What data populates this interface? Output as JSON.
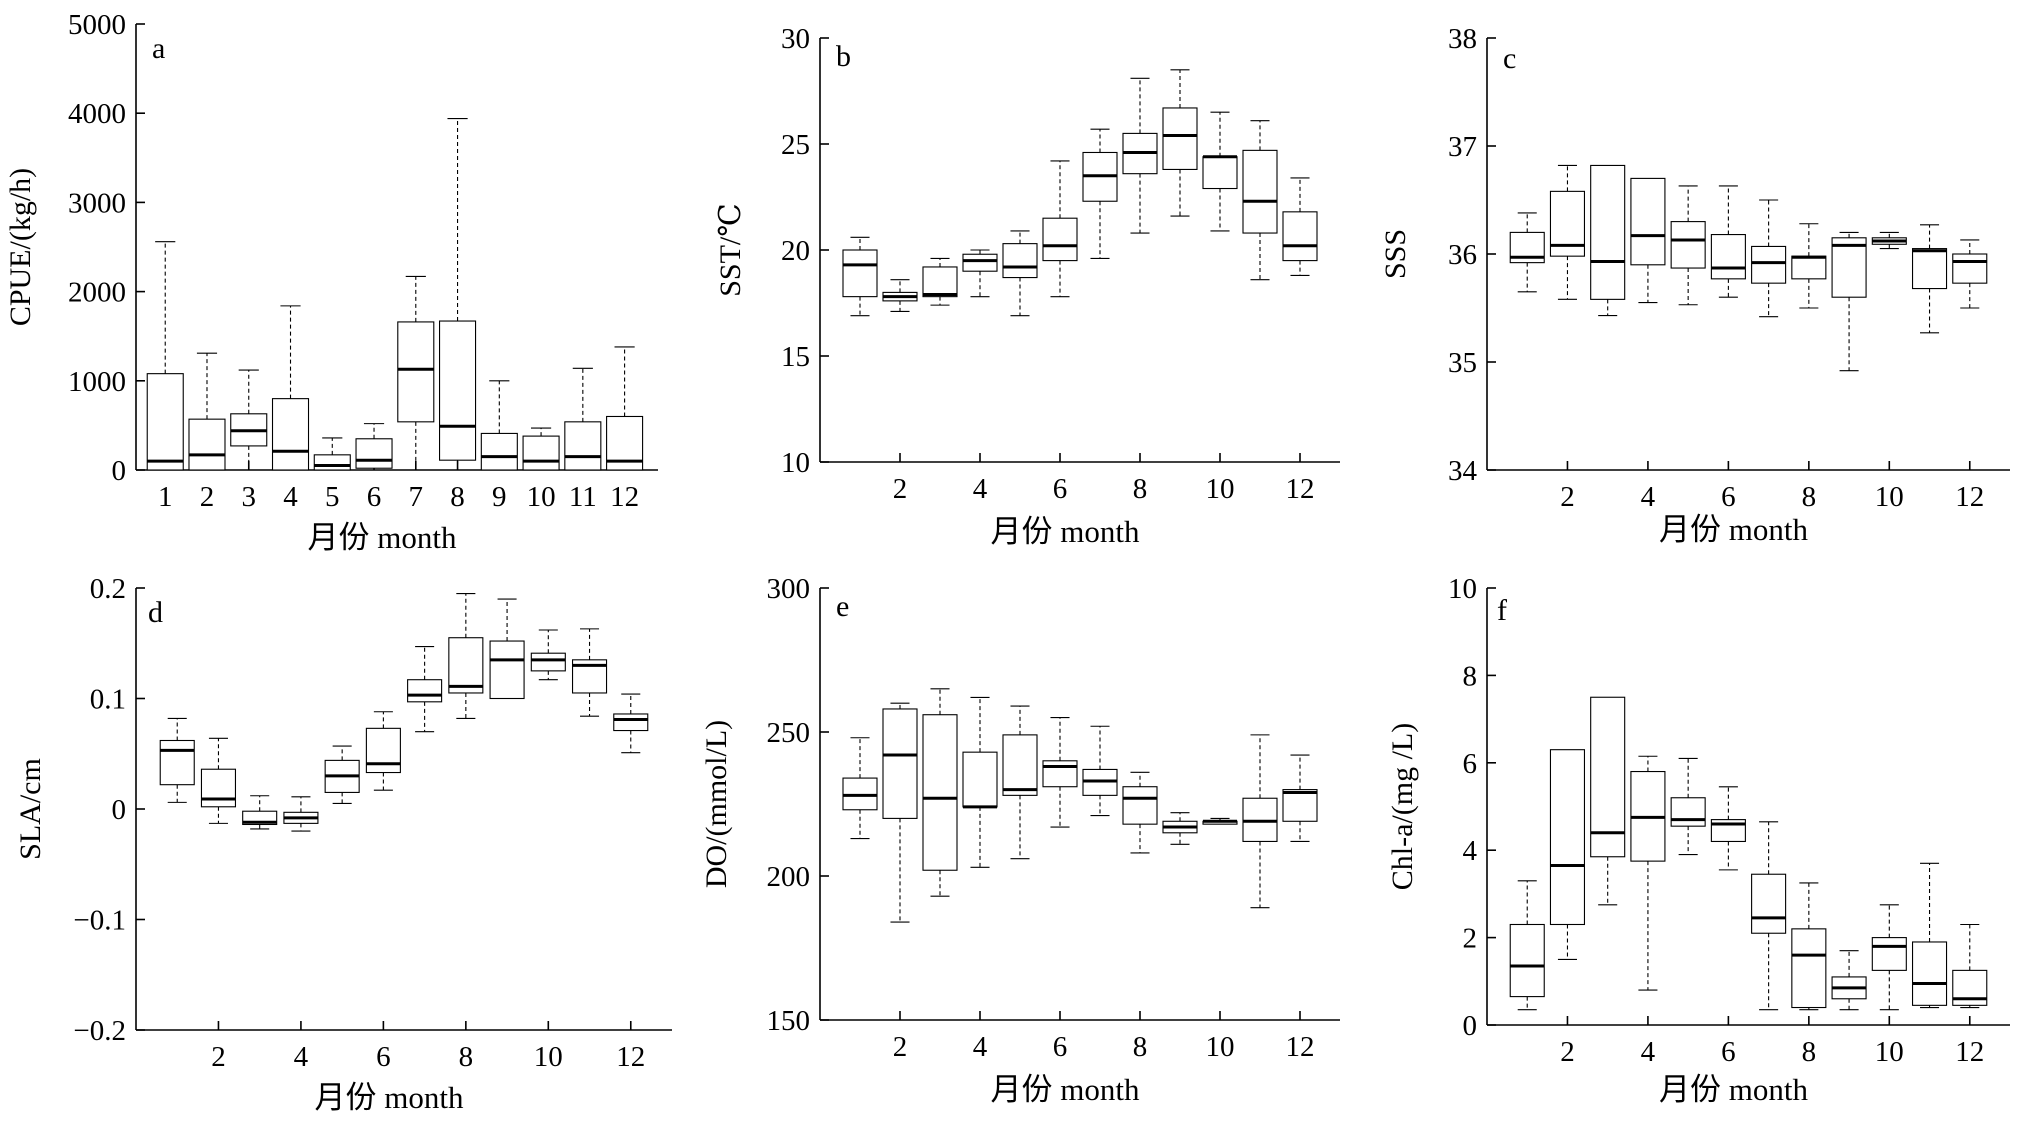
{
  "chart_data": [
    {
      "panel": "a",
      "type": "box",
      "ylabel": "CPUE/(kg/h)",
      "xlabel": "月份 month",
      "ylim": [
        0,
        5000
      ],
      "yticks": [
        0,
        1000,
        2000,
        3000,
        4000,
        5000
      ],
      "xticks": [
        1,
        2,
        3,
        4,
        5,
        6,
        7,
        8,
        9,
        10,
        11,
        12
      ],
      "xlim": [
        0.3,
        12.8
      ],
      "boxes": [
        {
          "x": 1,
          "min": 0,
          "q1": 0,
          "median": 100,
          "q3": 1080,
          "max": 2560
        },
        {
          "x": 2,
          "min": 0,
          "q1": 0,
          "median": 170,
          "q3": 570,
          "max": 1310
        },
        {
          "x": 3,
          "min": 0,
          "q1": 270,
          "median": 440,
          "q3": 630,
          "max": 1120
        },
        {
          "x": 4,
          "min": 0,
          "q1": 0,
          "median": 210,
          "q3": 800,
          "max": 1840
        },
        {
          "x": 5,
          "min": 0,
          "q1": 0,
          "median": 50,
          "q3": 170,
          "max": 360
        },
        {
          "x": 6,
          "min": 0,
          "q1": 20,
          "median": 110,
          "q3": 350,
          "max": 520
        },
        {
          "x": 7,
          "min": 0,
          "q1": 540,
          "median": 1130,
          "q3": 1660,
          "max": 2170
        },
        {
          "x": 8,
          "min": 0,
          "q1": 110,
          "median": 490,
          "q3": 1670,
          "max": 3940
        },
        {
          "x": 9,
          "min": 0,
          "q1": 0,
          "median": 150,
          "q3": 410,
          "max": 1000
        },
        {
          "x": 10,
          "min": 0,
          "q1": 0,
          "median": 100,
          "q3": 380,
          "max": 470
        },
        {
          "x": 11,
          "min": 0,
          "q1": 0,
          "median": 150,
          "q3": 540,
          "max": 1140
        },
        {
          "x": 12,
          "min": 0,
          "q1": 0,
          "median": 100,
          "q3": 600,
          "max": 1380
        }
      ]
    },
    {
      "panel": "b",
      "type": "box",
      "ylabel": "SST/℃",
      "xlabel": "月份 month",
      "ylim": [
        10,
        30
      ],
      "yticks": [
        10,
        15,
        20,
        25,
        30
      ],
      "xticks": [
        2,
        4,
        6,
        8,
        10,
        12
      ],
      "xlim": [
        0,
        13
      ],
      "boxes": [
        {
          "x": 1,
          "min": 16.9,
          "q1": 17.8,
          "median": 19.3,
          "q3": 20.0,
          "max": 20.6
        },
        {
          "x": 2,
          "min": 17.1,
          "q1": 17.6,
          "median": 17.8,
          "q3": 18.0,
          "max": 18.6
        },
        {
          "x": 3,
          "min": 17.4,
          "q1": 17.8,
          "median": 17.9,
          "q3": 19.2,
          "max": 19.6
        },
        {
          "x": 4,
          "min": 17.8,
          "q1": 19.0,
          "median": 19.5,
          "q3": 19.8,
          "max": 20.0
        },
        {
          "x": 5,
          "min": 16.9,
          "q1": 18.7,
          "median": 19.2,
          "q3": 20.3,
          "max": 20.9
        },
        {
          "x": 6,
          "min": 17.8,
          "q1": 19.5,
          "median": 20.2,
          "q3": 21.5,
          "max": 24.2
        },
        {
          "x": 7,
          "min": 19.6,
          "q1": 22.3,
          "median": 23.5,
          "q3": 24.6,
          "max": 25.7
        },
        {
          "x": 8,
          "min": 20.8,
          "q1": 23.6,
          "median": 24.6,
          "q3": 25.5,
          "max": 28.1
        },
        {
          "x": 9,
          "min": 21.6,
          "q1": 23.8,
          "median": 25.4,
          "q3": 26.7,
          "max": 28.5
        },
        {
          "x": 10,
          "min": 20.9,
          "q1": 22.9,
          "median": 24.4,
          "q3": 24.4,
          "max": 26.5
        },
        {
          "x": 11,
          "min": 18.6,
          "q1": 20.8,
          "median": 22.3,
          "q3": 24.7,
          "max": 26.1
        },
        {
          "x": 12,
          "min": 18.8,
          "q1": 19.5,
          "median": 20.2,
          "q3": 21.8,
          "max": 23.4
        }
      ]
    },
    {
      "panel": "c",
      "type": "box",
      "ylabel": "SSS",
      "xlabel": "月份 month",
      "ylim": [
        34,
        38
      ],
      "yticks": [
        34,
        35,
        36,
        37,
        38
      ],
      "xticks": [
        2,
        4,
        6,
        8,
        10,
        12
      ],
      "xlim": [
        0,
        13
      ],
      "boxes": [
        {
          "x": 1,
          "min": 35.65,
          "q1": 35.92,
          "median": 35.97,
          "q3": 36.2,
          "max": 36.38
        },
        {
          "x": 2,
          "min": 35.58,
          "q1": 35.98,
          "median": 36.08,
          "q3": 36.58,
          "max": 36.82
        },
        {
          "x": 3,
          "min": 35.43,
          "q1": 35.58,
          "median": 35.93,
          "q3": 36.82,
          "max": 36.82
        },
        {
          "x": 4,
          "min": 35.55,
          "q1": 35.9,
          "median": 36.17,
          "q3": 36.7,
          "max": 36.7
        },
        {
          "x": 5,
          "min": 35.53,
          "q1": 35.87,
          "median": 36.13,
          "q3": 36.3,
          "max": 36.63
        },
        {
          "x": 6,
          "min": 35.6,
          "q1": 35.77,
          "median": 35.87,
          "q3": 36.18,
          "max": 36.63
        },
        {
          "x": 7,
          "min": 35.42,
          "q1": 35.73,
          "median": 35.92,
          "q3": 36.07,
          "max": 36.5
        },
        {
          "x": 8,
          "min": 35.5,
          "q1": 35.77,
          "median": 35.97,
          "q3": 35.98,
          "max": 36.28
        },
        {
          "x": 9,
          "min": 34.92,
          "q1": 35.6,
          "median": 36.08,
          "q3": 36.15,
          "max": 36.2
        },
        {
          "x": 10,
          "min": 36.05,
          "q1": 36.09,
          "median": 36.12,
          "q3": 36.15,
          "max": 36.2
        },
        {
          "x": 11,
          "min": 35.27,
          "q1": 35.68,
          "median": 36.03,
          "q3": 36.05,
          "max": 36.27
        },
        {
          "x": 12,
          "min": 35.5,
          "q1": 35.73,
          "median": 35.93,
          "q3": 36.0,
          "max": 36.13
        }
      ]
    },
    {
      "panel": "d",
      "type": "box",
      "ylabel": "SLA/cm",
      "xlabel": "月份 month",
      "ylim": [
        -0.2,
        0.2
      ],
      "yticks": [
        -0.2,
        -0.1,
        0,
        0.1,
        0.2
      ],
      "ytick_labels": [
        "−0.2",
        "−0.1",
        "0",
        "0.1",
        "0.2"
      ],
      "xticks": [
        2,
        4,
        6,
        8,
        10,
        12
      ],
      "xlim": [
        0,
        13
      ],
      "boxes": [
        {
          "x": 1,
          "min": 0.006,
          "q1": 0.022,
          "median": 0.053,
          "q3": 0.062,
          "max": 0.082
        },
        {
          "x": 2,
          "min": -0.013,
          "q1": 0.002,
          "median": 0.009,
          "q3": 0.036,
          "max": 0.064
        },
        {
          "x": 3,
          "min": -0.018,
          "q1": -0.014,
          "median": -0.012,
          "q3": -0.002,
          "max": 0.012
        },
        {
          "x": 4,
          "min": -0.02,
          "q1": -0.013,
          "median": -0.008,
          "q3": -0.003,
          "max": 0.011
        },
        {
          "x": 5,
          "min": 0.005,
          "q1": 0.015,
          "median": 0.03,
          "q3": 0.044,
          "max": 0.057
        },
        {
          "x": 6,
          "min": 0.017,
          "q1": 0.033,
          "median": 0.041,
          "q3": 0.073,
          "max": 0.088
        },
        {
          "x": 7,
          "min": 0.07,
          "q1": 0.097,
          "median": 0.103,
          "q3": 0.117,
          "max": 0.147
        },
        {
          "x": 8,
          "min": 0.082,
          "q1": 0.105,
          "median": 0.111,
          "q3": 0.155,
          "max": 0.195
        },
        {
          "x": 9,
          "min": 0.1,
          "q1": 0.1,
          "median": 0.135,
          "q3": 0.152,
          "max": 0.19
        },
        {
          "x": 10,
          "min": 0.117,
          "q1": 0.125,
          "median": 0.135,
          "q3": 0.141,
          "max": 0.162
        },
        {
          "x": 11,
          "min": 0.084,
          "q1": 0.105,
          "median": 0.13,
          "q3": 0.135,
          "max": 0.163
        },
        {
          "x": 12,
          "min": 0.051,
          "q1": 0.071,
          "median": 0.081,
          "q3": 0.086,
          "max": 0.104
        }
      ]
    },
    {
      "panel": "e",
      "type": "box",
      "ylabel": "DO/(mmol/L)",
      "xlabel": "月份 month",
      "ylim": [
        150,
        300
      ],
      "yticks": [
        150,
        200,
        250,
        300
      ],
      "xticks": [
        2,
        4,
        6,
        8,
        10,
        12
      ],
      "xlim": [
        0,
        13
      ],
      "boxes": [
        {
          "x": 1,
          "min": 213,
          "q1": 223,
          "median": 228,
          "q3": 234,
          "max": 248
        },
        {
          "x": 2,
          "min": 184,
          "q1": 220,
          "median": 242,
          "q3": 258,
          "max": 260
        },
        {
          "x": 3,
          "min": 193,
          "q1": 202,
          "median": 227,
          "q3": 256,
          "max": 265
        },
        {
          "x": 4,
          "min": 203,
          "q1": 224,
          "median": 224,
          "q3": 243,
          "max": 262
        },
        {
          "x": 5,
          "min": 206,
          "q1": 228,
          "median": 230,
          "q3": 249,
          "max": 259
        },
        {
          "x": 6,
          "min": 217,
          "q1": 231,
          "median": 238,
          "q3": 240,
          "max": 255
        },
        {
          "x": 7,
          "min": 221,
          "q1": 228,
          "median": 233,
          "q3": 237,
          "max": 252
        },
        {
          "x": 8,
          "min": 208,
          "q1": 218,
          "median": 227,
          "q3": 231,
          "max": 236
        },
        {
          "x": 9,
          "min": 211,
          "q1": 215,
          "median": 217,
          "q3": 219,
          "max": 222
        },
        {
          "x": 10,
          "min": 218,
          "q1": 218,
          "median": 219,
          "q3": 219,
          "max": 220
        },
        {
          "x": 11,
          "min": 189,
          "q1": 212,
          "median": 219,
          "q3": 227,
          "max": 249
        },
        {
          "x": 12,
          "min": 212,
          "q1": 219,
          "median": 229,
          "q3": 230,
          "max": 242
        }
      ]
    },
    {
      "panel": "f",
      "type": "box",
      "ylabel": "Chl-a/(mg /L)",
      "xlabel": "月份 month",
      "ylim": [
        0,
        10
      ],
      "yticks": [
        0,
        2,
        4,
        6,
        8,
        10
      ],
      "xticks": [
        2,
        4,
        6,
        8,
        10,
        12
      ],
      "xlim": [
        0,
        13
      ],
      "boxes": [
        {
          "x": 1,
          "min": 0.35,
          "q1": 0.65,
          "median": 1.35,
          "q3": 2.3,
          "max": 3.3
        },
        {
          "x": 2,
          "min": 1.5,
          "q1": 2.3,
          "median": 3.65,
          "q3": 6.3,
          "max": 6.3
        },
        {
          "x": 3,
          "min": 2.75,
          "q1": 3.85,
          "median": 4.4,
          "q3": 7.5,
          "max": 7.5
        },
        {
          "x": 4,
          "min": 0.8,
          "q1": 3.75,
          "median": 4.75,
          "q3": 5.8,
          "max": 6.15
        },
        {
          "x": 5,
          "min": 3.9,
          "q1": 4.55,
          "median": 4.7,
          "q3": 5.2,
          "max": 6.1
        },
        {
          "x": 6,
          "min": 3.55,
          "q1": 4.2,
          "median": 4.6,
          "q3": 4.7,
          "max": 5.45
        },
        {
          "x": 7,
          "min": 0.35,
          "q1": 2.1,
          "median": 2.45,
          "q3": 3.45,
          "max": 4.65
        },
        {
          "x": 8,
          "min": 0.35,
          "q1": 0.4,
          "median": 1.6,
          "q3": 2.2,
          "max": 3.25
        },
        {
          "x": 9,
          "min": 0.35,
          "q1": 0.6,
          "median": 0.85,
          "q3": 1.1,
          "max": 1.7
        },
        {
          "x": 10,
          "min": 0.35,
          "q1": 1.25,
          "median": 1.8,
          "q3": 2.0,
          "max": 2.75
        },
        {
          "x": 11,
          "min": 0.4,
          "q1": 0.45,
          "median": 0.95,
          "q3": 1.9,
          "max": 3.7
        },
        {
          "x": 12,
          "min": 0.4,
          "q1": 0.45,
          "median": 0.6,
          "q3": 1.25,
          "max": 2.3
        }
      ]
    }
  ]
}
